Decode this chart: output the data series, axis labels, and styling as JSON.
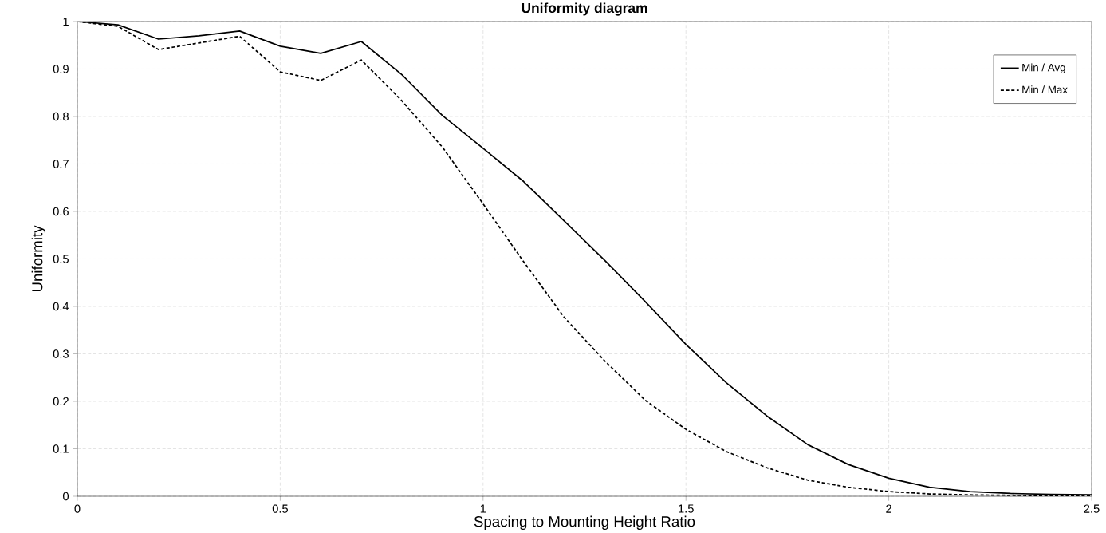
{
  "chart_data": {
    "type": "line",
    "title": "Uniformity diagram",
    "xlabel": "Spacing to Mounting Height Ratio",
    "ylabel": "Uniformity",
    "x": [
      0,
      0.1,
      0.2,
      0.3,
      0.4,
      0.5,
      0.6,
      0.7,
      0.8,
      0.9,
      1.0,
      1.1,
      1.2,
      1.3,
      1.4,
      1.5,
      1.6,
      1.7,
      1.8,
      1.9,
      2.0,
      2.1,
      2.2,
      2.3,
      2.4,
      2.5
    ],
    "series": [
      {
        "name": "Min / Avg",
        "color": "#000000",
        "line_style": "solid",
        "values": [
          1.0,
          0.993,
          0.963,
          0.97,
          0.98,
          0.948,
          0.933,
          0.958,
          0.888,
          0.802,
          0.733,
          0.663,
          0.58,
          0.497,
          0.41,
          0.32,
          0.239,
          0.169,
          0.109,
          0.067,
          0.038,
          0.019,
          0.01,
          0.006,
          0.004,
          0.003
        ]
      },
      {
        "name": "Min / Max",
        "color": "#000000",
        "line_style": "dashed",
        "values": [
          1.0,
          0.99,
          0.941,
          0.955,
          0.969,
          0.894,
          0.876,
          0.919,
          0.833,
          0.735,
          0.616,
          0.494,
          0.377,
          0.285,
          0.202,
          0.141,
          0.094,
          0.06,
          0.034,
          0.019,
          0.01,
          0.005,
          0.003,
          0.002,
          0.001,
          0.001
        ]
      }
    ],
    "xlim": [
      0,
      2.5
    ],
    "ylim": [
      0,
      1
    ],
    "xticks": [
      0,
      0.5,
      1,
      1.5,
      2,
      2.5
    ],
    "yticks": [
      0,
      0.1,
      0.2,
      0.3,
      0.4,
      0.5,
      0.6,
      0.7,
      0.8,
      0.9,
      1
    ],
    "grid": true,
    "legend": "top right"
  }
}
